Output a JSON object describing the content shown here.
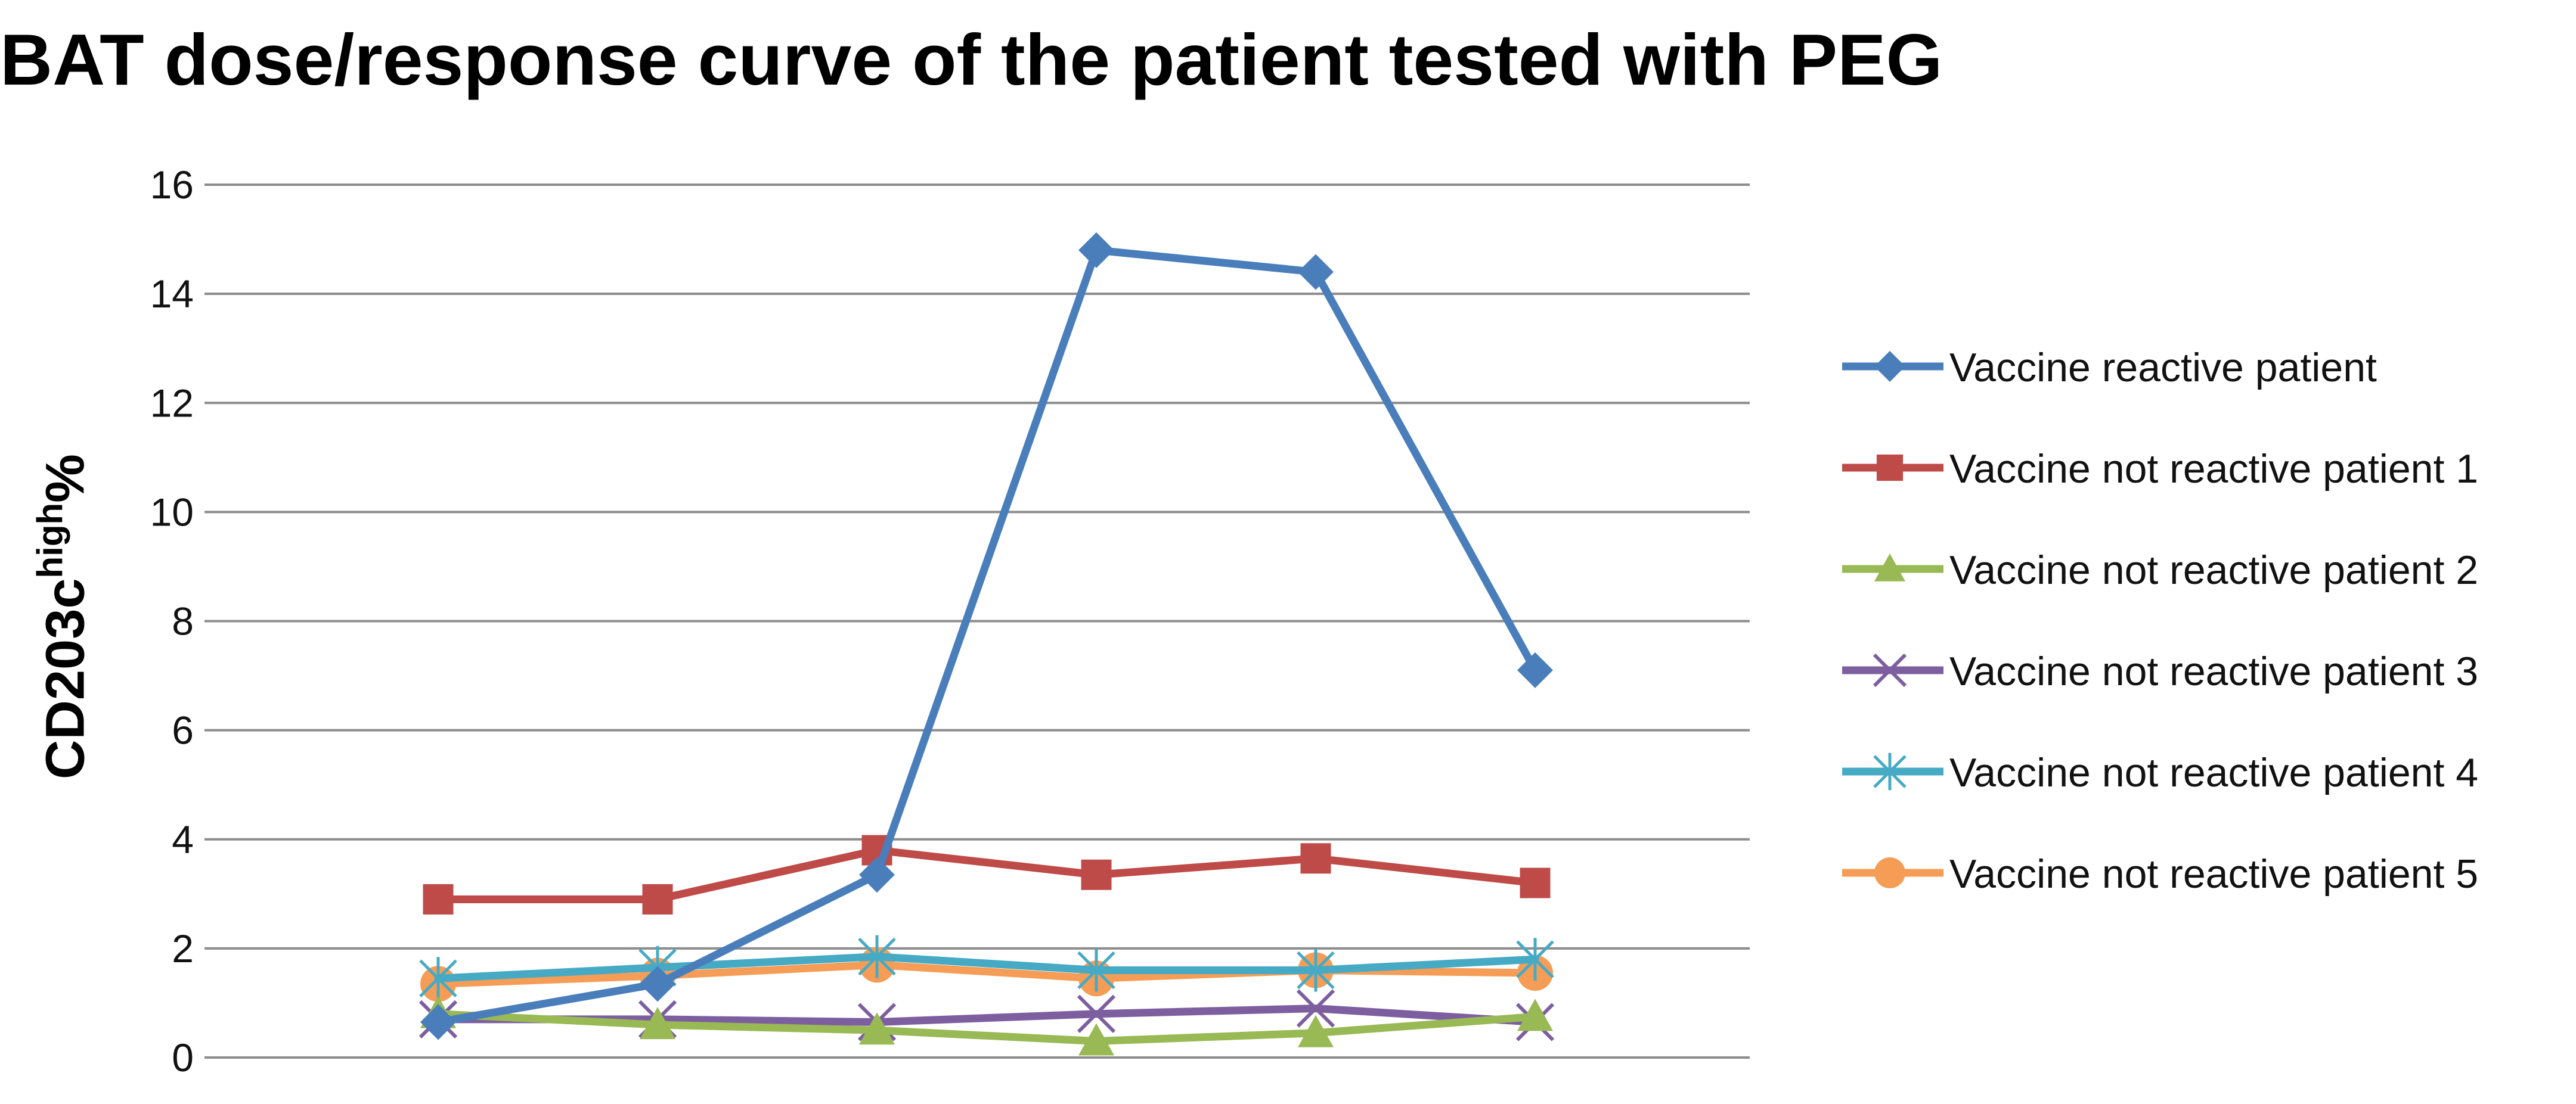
{
  "chart_data": {
    "type": "line",
    "title": "BAT dose/response curve of the patient tested with PEG",
    "ylabel_main": "CD203c",
    "ylabel_sup": "high",
    "ylabel_suffix": "%",
    "xlabel": "",
    "ylim": [
      0,
      16
    ],
    "yticks": [
      0,
      2,
      4,
      6,
      8,
      10,
      12,
      14,
      16
    ],
    "categories": [
      "",
      "",
      "",
      "",
      "",
      ""
    ],
    "grid": true,
    "legend_position": "right",
    "series": [
      {
        "name": "Vaccine reactive patient",
        "color": "#4a7ebb",
        "marker": "diamond",
        "values": [
          0.65,
          1.35,
          3.35,
          14.8,
          14.4,
          7.1
        ]
      },
      {
        "name": "Vaccine not reactive patient 1",
        "color": "#be4b48",
        "marker": "square",
        "values": [
          2.9,
          2.9,
          3.8,
          3.35,
          3.65,
          3.2
        ]
      },
      {
        "name": "Vaccine not reactive patient 2",
        "color": "#98b954",
        "marker": "triangle",
        "values": [
          0.8,
          0.6,
          0.5,
          0.3,
          0.45,
          0.75
        ]
      },
      {
        "name": "Vaccine not reactive patient 3",
        "color": "#7d5fa0",
        "marker": "x",
        "values": [
          0.7,
          0.7,
          0.65,
          0.8,
          0.9,
          0.65
        ]
      },
      {
        "name": "Vaccine not reactive patient 4",
        "color": "#46aac5",
        "marker": "asterisk",
        "values": [
          1.45,
          1.65,
          1.85,
          1.6,
          1.6,
          1.8
        ]
      },
      {
        "name": "Vaccine not reactive patient 5",
        "color": "#f59d56",
        "marker": "circle",
        "values": [
          1.35,
          1.5,
          1.7,
          1.45,
          1.6,
          1.55
        ]
      }
    ]
  }
}
